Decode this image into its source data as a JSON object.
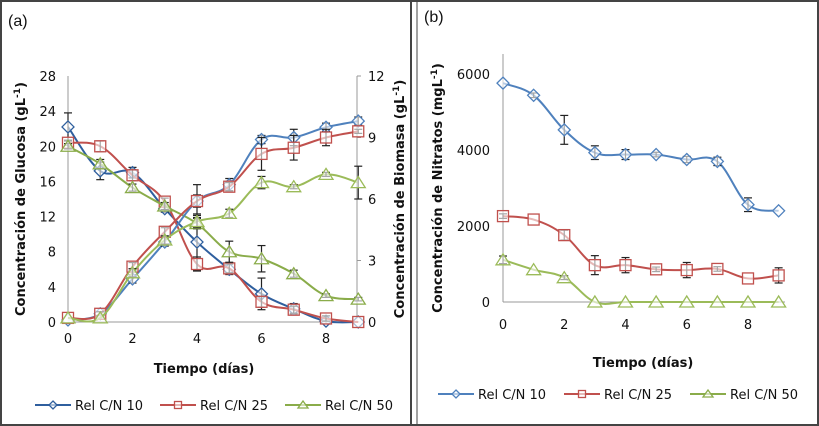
{
  "chart_data": [
    {
      "type": "line",
      "panel_label": "(a)",
      "xlabel": "Tiempo (días)",
      "ylabel": "Concentración de Glucosa (gL-1)",
      "ylabel_main": "Concentración de Glucosa (gL",
      "ylabel_sup": "-1",
      "ylabel_close": ")",
      "y2label_main": "Concentración de Biomasa (gL",
      "y2label_sup": "-1",
      "y2label_close": ")",
      "x": [
        0,
        1,
        2,
        3,
        4,
        5,
        6,
        7,
        8,
        9
      ],
      "xlim": [
        0,
        9
      ],
      "xticks": [
        0,
        2,
        4,
        6,
        8
      ],
      "ylim": [
        0,
        28
      ],
      "yticks": [
        0,
        4,
        8,
        12,
        16,
        20,
        24,
        28
      ],
      "y2lim": [
        0,
        12
      ],
      "y2ticks": [
        0,
        3,
        6,
        9,
        12
      ],
      "grid": false,
      "legend_position": "bottom",
      "series": [
        {
          "name": "Rel C/N 10",
          "marker": "diamond",
          "color": "#2f5f9e",
          "axis": "left",
          "quantity": "glucosa",
          "values": [
            22.2,
            17.2,
            17.0,
            12.9,
            9.1,
            6.0,
            3.2,
            1.5,
            0.1,
            0.0
          ],
          "errors": [
            1.6,
            1.0,
            0.6,
            0.4,
            3.2,
            0.6,
            1.8,
            0.6,
            0.3,
            0.0
          ]
        },
        {
          "name": "Rel C/N 25",
          "marker": "square",
          "color": "#c0504d",
          "axis": "left",
          "quantity": "glucosa",
          "values": [
            20.4,
            20.0,
            16.7,
            13.7,
            6.6,
            6.1,
            2.3,
            1.4,
            0.4,
            0.0
          ],
          "errors": [
            0.3,
            0.6,
            0.6,
            0.4,
            0.8,
            0.5,
            0.6,
            0.4,
            0.3,
            0.0
          ]
        },
        {
          "name": "Rel C/N 50",
          "marker": "triangle",
          "color": "#8aac4a",
          "axis": "left",
          "quantity": "glucosa",
          "values": [
            20.0,
            18.0,
            15.3,
            13.2,
            11.2,
            8.0,
            7.2,
            5.5,
            3.0,
            2.6
          ],
          "errors": [
            0.3,
            0.5,
            0.4,
            0.4,
            0.6,
            1.2,
            1.5,
            0.4,
            0.2,
            0.2
          ]
        },
        {
          "name": "Rel C/N 10",
          "marker": "diamond",
          "color": "#4f81bd",
          "axis": "right",
          "quantity": "biomasa",
          "values": [
            0.1,
            0.4,
            2.1,
            3.9,
            5.9,
            6.7,
            8.9,
            9.0,
            9.5,
            9.8
          ],
          "errors": [
            0.0,
            0.1,
            0.2,
            0.2,
            0.8,
            0.3,
            0.2,
            0.4,
            0.2,
            0.2
          ]
        },
        {
          "name": "Rel C/N 25",
          "marker": "square",
          "color": "#c0504d",
          "axis": "right",
          "quantity": "biomasa",
          "values": [
            0.2,
            0.4,
            2.7,
            4.4,
            5.9,
            6.6,
            8.2,
            8.5,
            9.0,
            9.3
          ],
          "errors": [
            0.0,
            0.1,
            0.2,
            0.2,
            0.3,
            0.2,
            0.8,
            0.6,
            0.4,
            0.1
          ]
        },
        {
          "name": "Rel C/N 50",
          "marker": "triangle",
          "color": "#9bbb59",
          "axis": "right",
          "quantity": "biomasa",
          "values": [
            0.2,
            0.2,
            2.4,
            4.0,
            4.9,
            5.3,
            6.8,
            6.6,
            7.2,
            6.8
          ],
          "errors": [
            0.0,
            0.0,
            0.2,
            0.2,
            0.3,
            0.2,
            0.3,
            0.1,
            0.1,
            0.8
          ]
        }
      ]
    },
    {
      "type": "line",
      "panel_label": "(b)",
      "xlabel": "Tiempo (días)",
      "ylabel": "Concentración de Nitratos (mgL-1)",
      "ylabel_main": "Concentración de Nitratos (mgL",
      "ylabel_sup": "-1",
      "ylabel_close": ")",
      "x": [
        0,
        1,
        2,
        3,
        4,
        5,
        6,
        7,
        8,
        9
      ],
      "xlim": [
        0,
        9
      ],
      "xticks": [
        0,
        2,
        4,
        6,
        8
      ],
      "ylim": [
        0,
        6000
      ],
      "yticks": [
        0,
        2000,
        4000,
        6000
      ],
      "grid": false,
      "legend_position": "bottom",
      "series": [
        {
          "name": "Rel C/N 10",
          "marker": "diamond",
          "color": "#4f81bd",
          "values": [
            5760,
            5440,
            4530,
            3930,
            3880,
            3880,
            3750,
            3700,
            2560,
            2400
          ],
          "errors": [
            0,
            60,
            380,
            180,
            130,
            60,
            80,
            110,
            180,
            0
          ]
        },
        {
          "name": "Rel C/N 25",
          "marker": "square",
          "color": "#c0504d",
          "values": [
            2260,
            2170,
            1760,
            970,
            970,
            860,
            840,
            870,
            620,
            700
          ],
          "errors": [
            60,
            0,
            130,
            250,
            200,
            60,
            200,
            60,
            0,
            200
          ]
        },
        {
          "name": "Rel C/N 50",
          "marker": "triangle",
          "color": "#9bbb59",
          "values": [
            1110,
            850,
            640,
            0,
            0,
            0,
            0,
            0,
            0,
            0
          ],
          "errors": [
            100,
            0,
            50,
            0,
            0,
            0,
            0,
            0,
            0,
            0
          ]
        }
      ]
    }
  ],
  "legend": {
    "items": [
      "Rel C/N 10",
      "Rel C/N 25",
      "Rel C/N 50"
    ]
  }
}
